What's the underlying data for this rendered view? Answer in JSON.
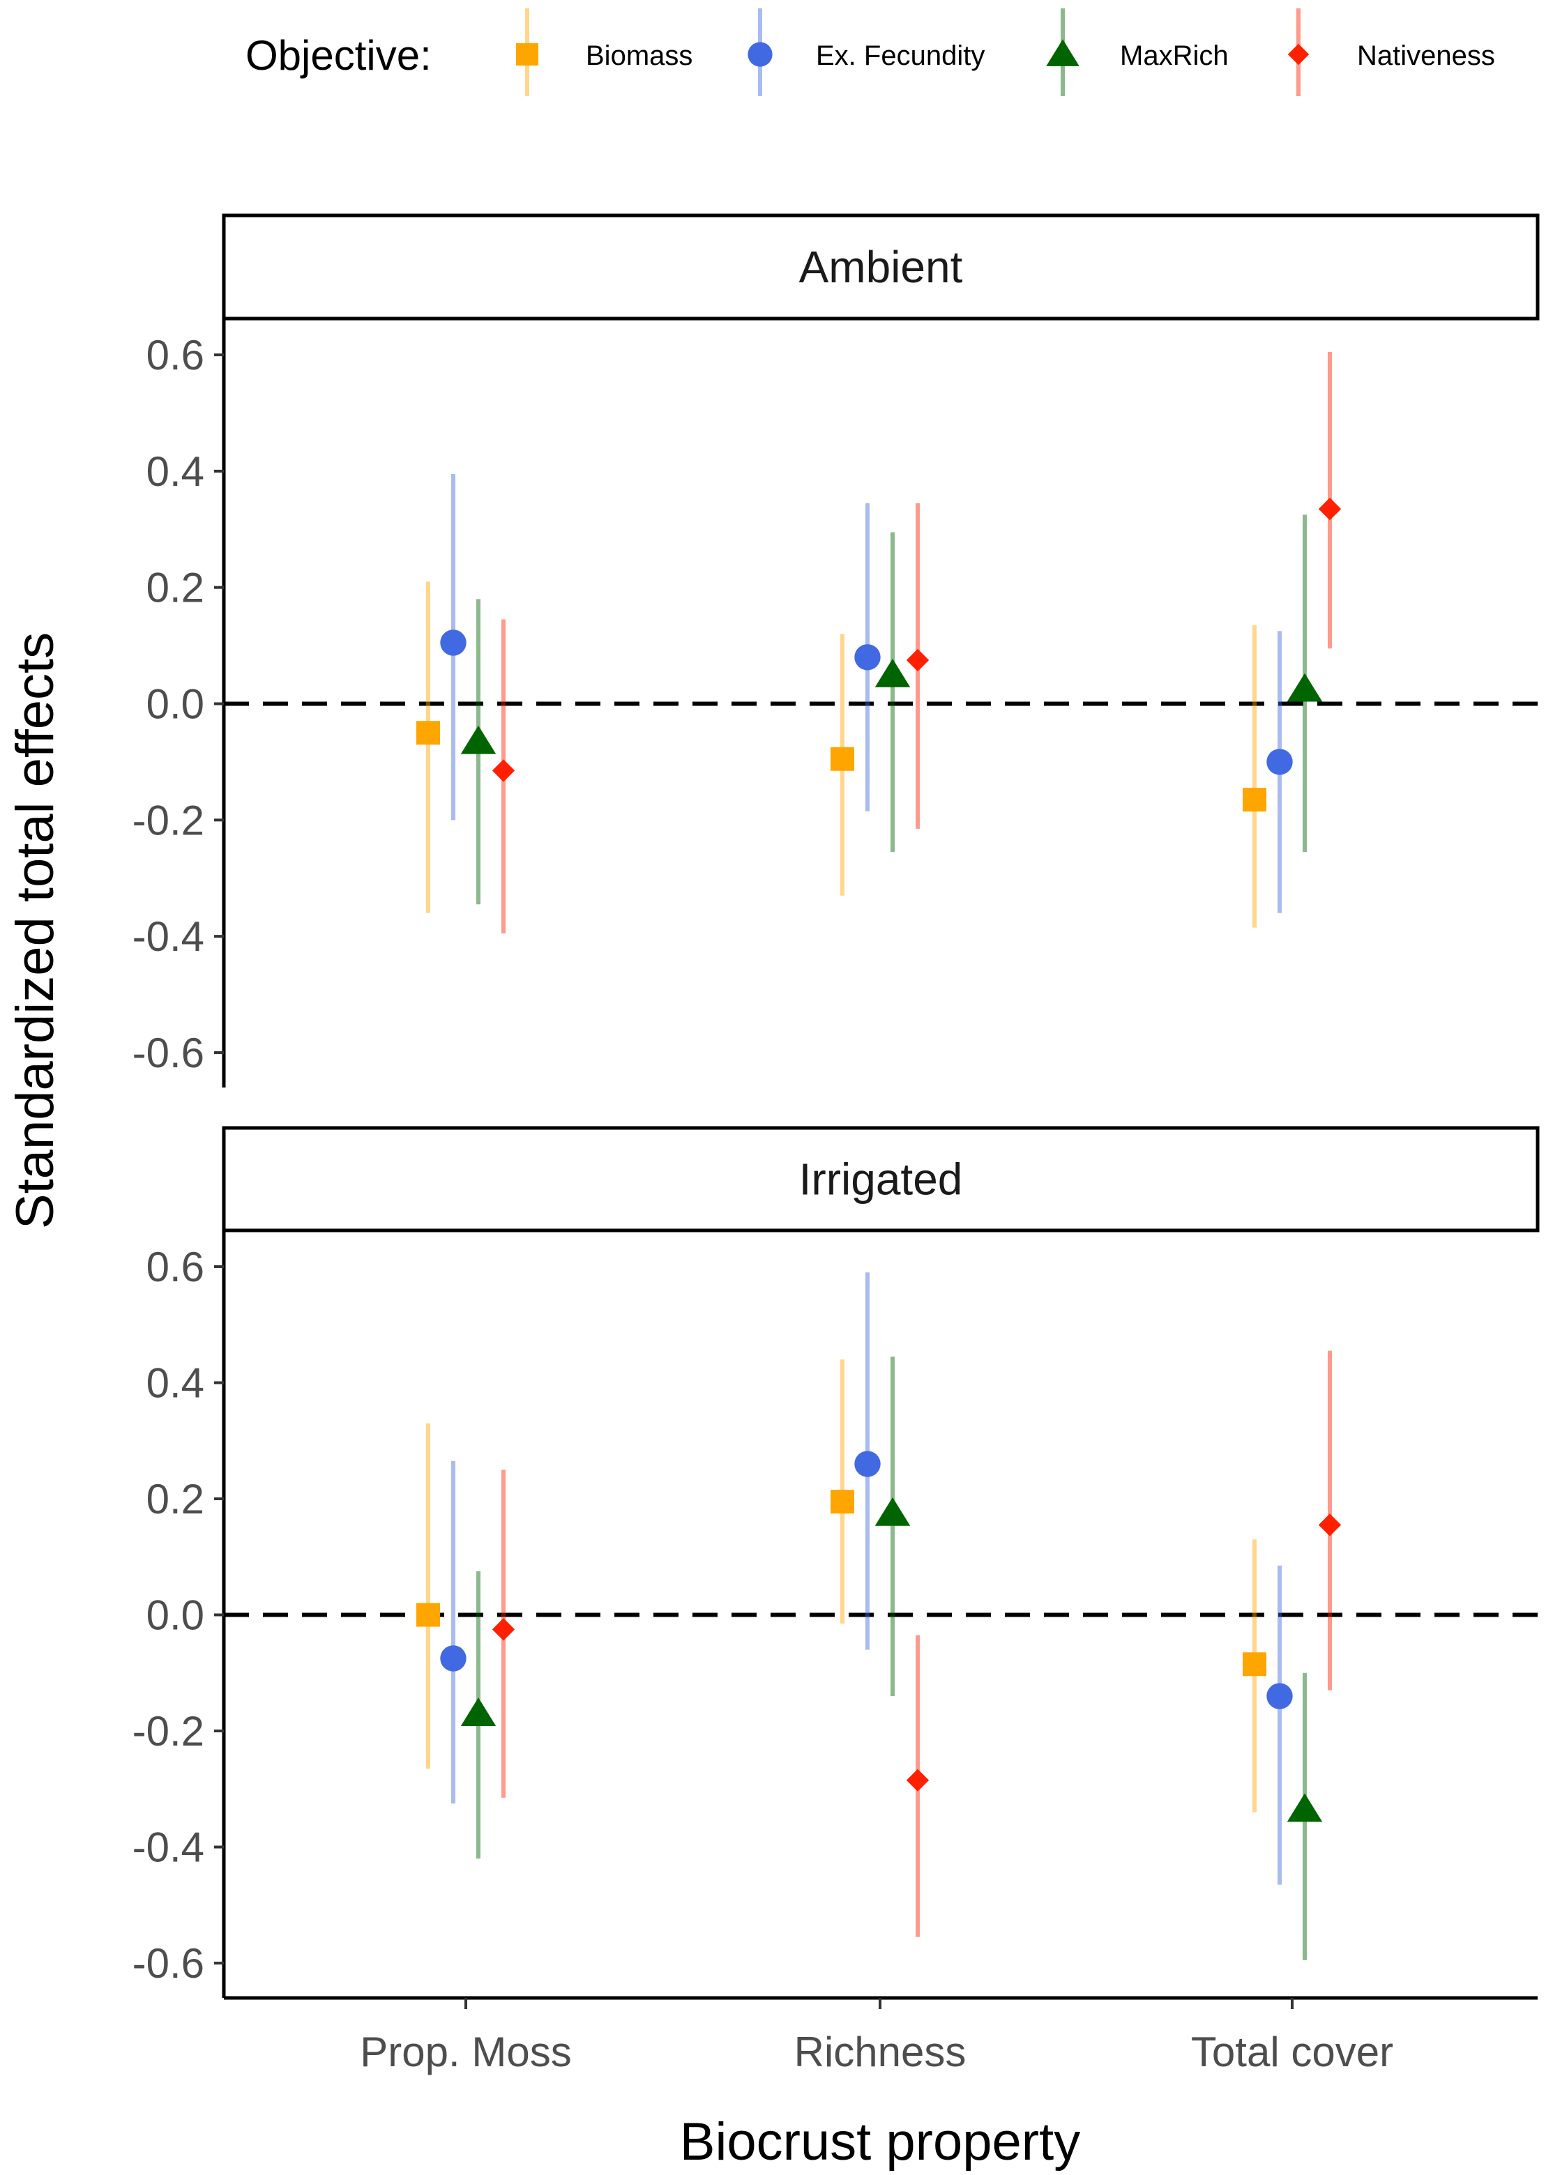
{
  "chart_data": {
    "type": "pointrange",
    "legend": {
      "title": "Objective:",
      "placement": "top",
      "entries": [
        {
          "name": "Biomass",
          "color": "#FFA500",
          "shape": "square"
        },
        {
          "name": "Ex. Fecundity",
          "color": "#4169E1",
          "shape": "circle"
        },
        {
          "name": "MaxRich",
          "color": "#006400",
          "shape": "triangle"
        },
        {
          "name": "Nativeness",
          "color": "#FF2000",
          "shape": "diamond"
        }
      ]
    },
    "xlabel": "Biocrust property",
    "ylabel": "Standardized total effects",
    "categories": [
      "Prop. Moss",
      "Richness",
      "Total cover"
    ],
    "ylim": [
      -0.66,
      0.66
    ],
    "yticks": [
      -0.6,
      -0.4,
      -0.2,
      0.0,
      0.2,
      0.4,
      0.6
    ],
    "ytick_labels": [
      "-0.6",
      "-0.4",
      "-0.2",
      "0.0",
      "0.2",
      "0.4",
      "0.6"
    ],
    "reference_line": 0,
    "panels": [
      {
        "title": "Ambient",
        "series": [
          {
            "name": "Biomass",
            "points": [
              {
                "category": "Prop. Moss",
                "estimate": -0.05,
                "lower": -0.36,
                "upper": 0.21
              },
              {
                "category": "Richness",
                "estimate": -0.095,
                "lower": -0.33,
                "upper": 0.12
              },
              {
                "category": "Total cover",
                "estimate": -0.165,
                "lower": -0.385,
                "upper": 0.135
              }
            ]
          },
          {
            "name": "Ex. Fecundity",
            "points": [
              {
                "category": "Prop. Moss",
                "estimate": 0.105,
                "lower": -0.2,
                "upper": 0.395
              },
              {
                "category": "Richness",
                "estimate": 0.08,
                "lower": -0.185,
                "upper": 0.345
              },
              {
                "category": "Total cover",
                "estimate": -0.1,
                "lower": -0.36,
                "upper": 0.125
              }
            ]
          },
          {
            "name": "MaxRich",
            "points": [
              {
                "category": "Prop. Moss",
                "estimate": -0.065,
                "lower": -0.345,
                "upper": 0.18
              },
              {
                "category": "Richness",
                "estimate": 0.05,
                "lower": -0.255,
                "upper": 0.295
              },
              {
                "category": "Total cover",
                "estimate": 0.025,
                "lower": -0.255,
                "upper": 0.325
              }
            ]
          },
          {
            "name": "Nativeness",
            "points": [
              {
                "category": "Prop. Moss",
                "estimate": -0.115,
                "lower": -0.395,
                "upper": 0.145
              },
              {
                "category": "Richness",
                "estimate": 0.075,
                "lower": -0.215,
                "upper": 0.345
              },
              {
                "category": "Total cover",
                "estimate": 0.335,
                "lower": 0.095,
                "upper": 0.605
              }
            ]
          }
        ]
      },
      {
        "title": "Irrigated",
        "series": [
          {
            "name": "Biomass",
            "points": [
              {
                "category": "Prop. Moss",
                "estimate": 0.0,
                "lower": -0.265,
                "upper": 0.33
              },
              {
                "category": "Richness",
                "estimate": 0.195,
                "lower": -0.015,
                "upper": 0.44
              },
              {
                "category": "Total cover",
                "estimate": -0.085,
                "lower": -0.34,
                "upper": 0.13
              }
            ]
          },
          {
            "name": "Ex. Fecundity",
            "points": [
              {
                "category": "Prop. Moss",
                "estimate": -0.075,
                "lower": -0.325,
                "upper": 0.265
              },
              {
                "category": "Richness",
                "estimate": 0.26,
                "lower": -0.06,
                "upper": 0.59
              },
              {
                "category": "Total cover",
                "estimate": -0.14,
                "lower": -0.465,
                "upper": 0.085
              }
            ]
          },
          {
            "name": "MaxRich",
            "points": [
              {
                "category": "Prop. Moss",
                "estimate": -0.17,
                "lower": -0.42,
                "upper": 0.075
              },
              {
                "category": "Richness",
                "estimate": 0.175,
                "lower": -0.14,
                "upper": 0.445
              },
              {
                "category": "Total cover",
                "estimate": -0.335,
                "lower": -0.595,
                "upper": -0.1
              }
            ]
          },
          {
            "name": "Nativeness",
            "points": [
              {
                "category": "Prop. Moss",
                "estimate": -0.025,
                "lower": -0.315,
                "upper": 0.25
              },
              {
                "category": "Richness",
                "estimate": -0.285,
                "lower": -0.555,
                "upper": -0.035
              },
              {
                "category": "Total cover",
                "estimate": 0.155,
                "lower": -0.13,
                "upper": 0.455
              }
            ]
          }
        ]
      }
    ]
  }
}
